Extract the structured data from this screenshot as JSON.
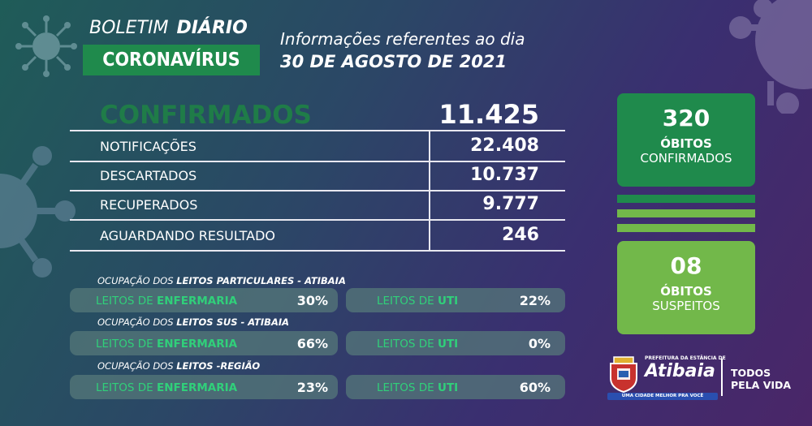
{
  "header": {
    "boletim": "BOLETIM",
    "diario": "DIÁRIO",
    "coronavirus": "CORONAVÍRUS",
    "info": "Informações referentes ao dia",
    "date": "30  DE AGOSTO DE 2021"
  },
  "summary": {
    "confirmed_label": "CONFIRMADOS",
    "confirmed_value": "11.425",
    "rows": [
      {
        "label": "NOTIFICAÇÕES",
        "value": "22.408"
      },
      {
        "label": "DESCARTADOS",
        "value": "10.737"
      },
      {
        "label": "RECUPERADOS",
        "value": "9.777"
      },
      {
        "label": "AGUARDANDO RESULTADO",
        "value": "246"
      }
    ]
  },
  "occupancy": [
    {
      "prefix": "OCUPAÇÃO DOS ",
      "strong": "LEITOS PARTICULARES - ATIBAIA",
      "enf_prefix": "LEITOS DE ",
      "enf_strong": "ENFERMARIA",
      "enf_value": "30%",
      "uti_prefix": "LEITOS DE ",
      "uti_strong": "UTI",
      "uti_value": "22%"
    },
    {
      "prefix": "OCUPAÇÃO DOS ",
      "strong": "LEITOS SUS - ATIBAIA",
      "enf_prefix": "LEITOS DE ",
      "enf_strong": "ENFERMARIA",
      "enf_value": "66%",
      "uti_prefix": "LEITOS DE ",
      "uti_strong": "UTI",
      "uti_value": "0%"
    },
    {
      "prefix": "OCUPAÇÃO DOS ",
      "strong": "LEITOS -REGIÃO",
      "enf_prefix": "LEITOS DE ",
      "enf_strong": "ENFERMARIA",
      "enf_value": "23%",
      "uti_prefix": "LEITOS DE ",
      "uti_strong": "UTI",
      "uti_value": "60%"
    }
  ],
  "deaths": {
    "confirmed_value": "320",
    "confirmed_line1": "ÓBITOS",
    "confirmed_line2": "CONFIRMADOS",
    "suspected_value": "08",
    "suspected_line1": "ÓBITOS",
    "suspected_line2": "SUSPEITOS"
  },
  "logo": {
    "prefeitura": "PREFEITURA DA ESTÂNCIA DE",
    "city": "Atibaia",
    "slogan": "UMA CIDADE MELHOR PRA VOCÊ",
    "todos_line1": "TODOS",
    "todos_line2": "PELA VIDA"
  },
  "colors": {
    "dark_green": "#1f8a4c",
    "light_green": "#72b84a",
    "accent_text_green": "#30d07a",
    "confirmed_text_green": "#1f7c48"
  },
  "icons": [
    "virus-icon",
    "atibaia-crest-icon"
  ]
}
